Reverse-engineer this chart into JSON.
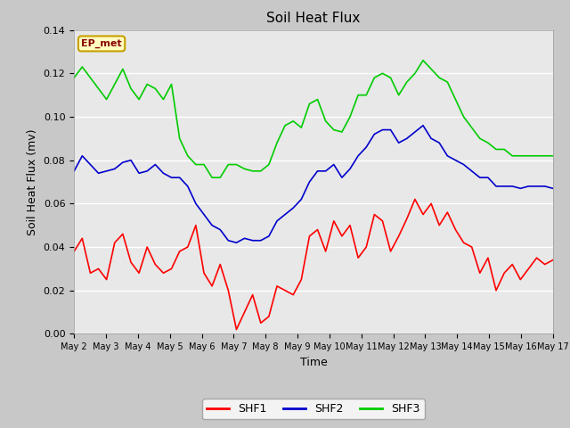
{
  "title": "Soil Heat Flux",
  "xlabel": "Time",
  "ylabel": "Soil Heat Flux (mv)",
  "ylim": [
    0.0,
    0.14
  ],
  "yticks": [
    0.0,
    0.02,
    0.04,
    0.06,
    0.08,
    0.1,
    0.12,
    0.14
  ],
  "x_labels": [
    "May 2",
    "May 3",
    "May 4",
    "May 5",
    "May 6",
    "May 7",
    "May 8",
    "May 9",
    "May 10",
    "May 11",
    "May 12",
    "May 13",
    "May 14",
    "May 15",
    "May 16",
    "May 17"
  ],
  "annotation_text": "EP_met",
  "annotation_color": "#8B0000",
  "annotation_bg": "#FFFFC0",
  "annotation_border": "#C8A000",
  "shf1_color": "#FF0000",
  "shf2_color": "#0000CD",
  "shf3_color": "#00CC00",
  "fig_bg_color": "#C8C8C8",
  "plot_bg": "#E8E8E8",
  "grid_color": "#FFFFFF",
  "legend_labels": [
    "SHF1",
    "SHF2",
    "SHF3"
  ],
  "shf1": [
    0.038,
    0.044,
    0.028,
    0.03,
    0.025,
    0.042,
    0.046,
    0.033,
    0.028,
    0.04,
    0.032,
    0.028,
    0.03,
    0.038,
    0.04,
    0.05,
    0.028,
    0.022,
    0.032,
    0.02,
    0.002,
    0.01,
    0.018,
    0.005,
    0.008,
    0.022,
    0.02,
    0.018,
    0.025,
    0.045,
    0.048,
    0.038,
    0.052,
    0.045,
    0.05,
    0.035,
    0.04,
    0.055,
    0.052,
    0.038,
    0.045,
    0.053,
    0.062,
    0.055,
    0.06,
    0.05,
    0.056,
    0.048,
    0.042,
    0.04,
    0.028,
    0.035,
    0.02,
    0.028,
    0.032,
    0.025,
    0.03,
    0.035,
    0.032,
    0.034
  ],
  "shf2": [
    0.075,
    0.082,
    0.078,
    0.074,
    0.075,
    0.076,
    0.079,
    0.08,
    0.074,
    0.075,
    0.078,
    0.074,
    0.072,
    0.072,
    0.068,
    0.06,
    0.055,
    0.05,
    0.048,
    0.043,
    0.042,
    0.044,
    0.043,
    0.043,
    0.045,
    0.052,
    0.055,
    0.058,
    0.062,
    0.07,
    0.075,
    0.075,
    0.078,
    0.072,
    0.076,
    0.082,
    0.086,
    0.092,
    0.094,
    0.094,
    0.088,
    0.09,
    0.093,
    0.096,
    0.09,
    0.088,
    0.082,
    0.08,
    0.078,
    0.075,
    0.072,
    0.072,
    0.068,
    0.068,
    0.068,
    0.067,
    0.068,
    0.068,
    0.068,
    0.067
  ],
  "shf3": [
    0.118,
    0.123,
    0.118,
    0.113,
    0.108,
    0.115,
    0.122,
    0.113,
    0.108,
    0.115,
    0.113,
    0.108,
    0.115,
    0.09,
    0.082,
    0.078,
    0.078,
    0.072,
    0.072,
    0.078,
    0.078,
    0.076,
    0.075,
    0.075,
    0.078,
    0.088,
    0.096,
    0.098,
    0.095,
    0.106,
    0.108,
    0.098,
    0.094,
    0.093,
    0.1,
    0.11,
    0.11,
    0.118,
    0.12,
    0.118,
    0.11,
    0.116,
    0.12,
    0.126,
    0.122,
    0.118,
    0.116,
    0.108,
    0.1,
    0.095,
    0.09,
    0.088,
    0.085,
    0.085,
    0.082,
    0.082,
    0.082,
    0.082,
    0.082,
    0.082
  ]
}
